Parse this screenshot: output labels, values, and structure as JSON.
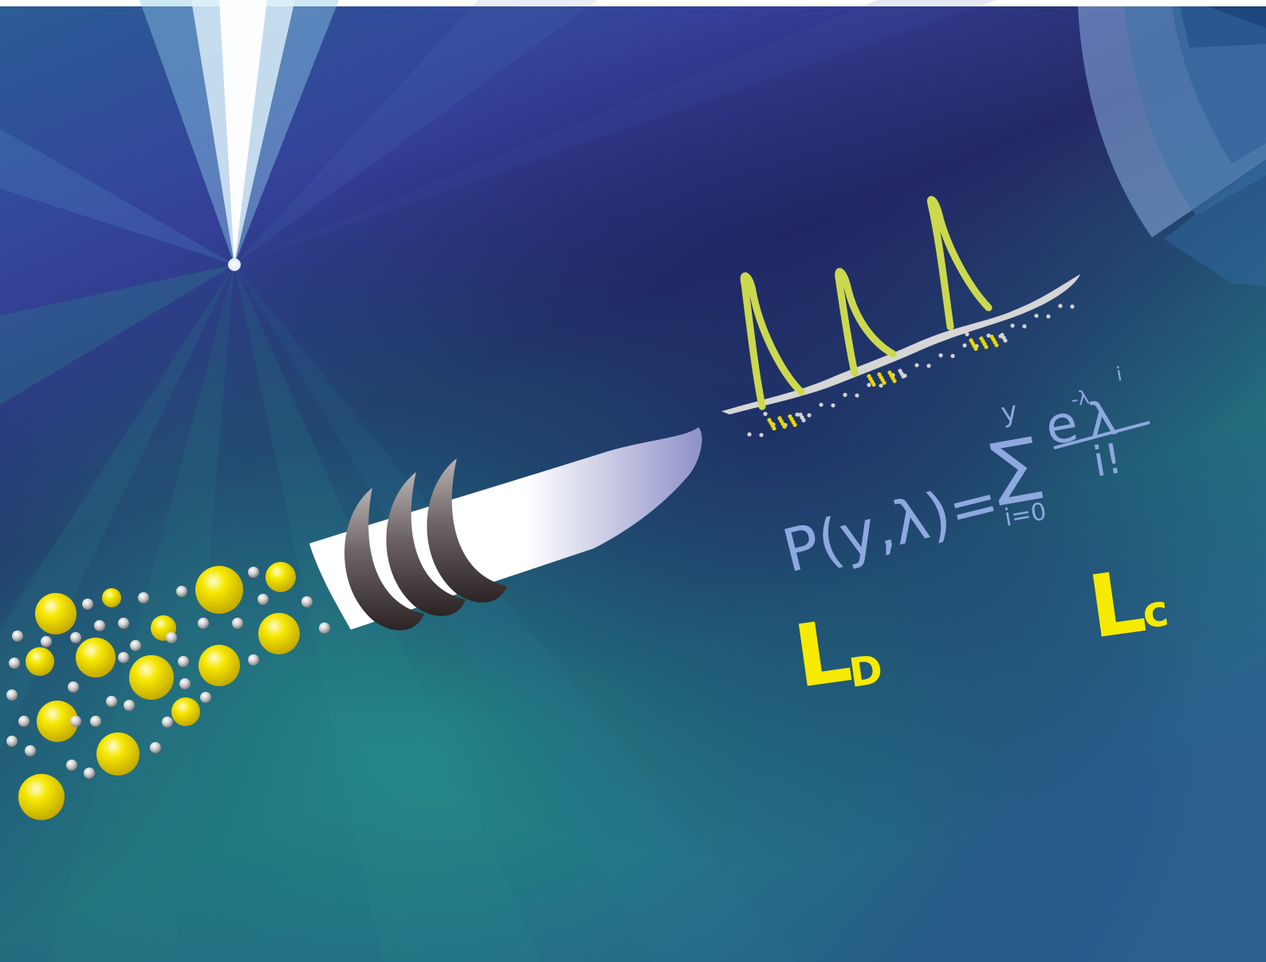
{
  "colors": {
    "navy": "#2a2f7a",
    "royal": "#36399a",
    "teal": "#237e86",
    "ray_white": "#ffffff",
    "particle_yellow": "#f2e000",
    "particle_gray": "#c8c8c8",
    "peak_lime": "#cfd84a",
    "formula_blue": "#8ea8e0",
    "label_yellow": "#f6ea00"
  },
  "formula": {
    "lhs": "P(y,λ)=",
    "sum_top": "y",
    "sum_sign": "∑",
    "sum_bottom": "i=0",
    "numerator_base": "e",
    "numerator_exp": "-λ",
    "numerator_var": "λ",
    "numerator_var_exp": "i",
    "denominator": "i!"
  },
  "labels": {
    "ld_main": "L",
    "ld_sub": "D",
    "lc_main": "L",
    "lc_sub": "c"
  }
}
